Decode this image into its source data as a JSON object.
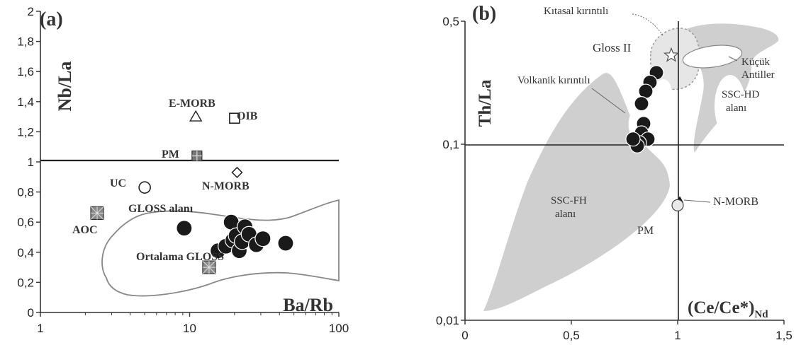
{
  "colors": {
    "region_fill": "#cfcfcf",
    "axis": "#333333",
    "sample": "#1a1a1a",
    "light_region": "#e6e6e6"
  },
  "chart_data": [
    {
      "panel": "(a)",
      "type": "scatter",
      "xlabel": "Ba/Rb",
      "ylabel": "Nb/La",
      "xscale": "log",
      "xlim": [
        1,
        100
      ],
      "ylim": [
        0,
        2
      ],
      "xticks": [
        "1",
        "10",
        "100"
      ],
      "yticks": [
        "0",
        "0,2",
        "0,4",
        "0,6",
        "0,8",
        "1",
        "1,2",
        "1,4",
        "1,6",
        "1,8",
        "2"
      ],
      "reference_line_y": 1,
      "region_label": "GLOSS alanı",
      "samples": [
        {
          "x": 9.2,
          "y": 0.56
        },
        {
          "x": 15.5,
          "y": 0.41
        },
        {
          "x": 17.5,
          "y": 0.44
        },
        {
          "x": 19,
          "y": 0.6
        },
        {
          "x": 19.5,
          "y": 0.48
        },
        {
          "x": 20.5,
          "y": 0.51
        },
        {
          "x": 21.5,
          "y": 0.41
        },
        {
          "x": 22.5,
          "y": 0.47
        },
        {
          "x": 23.5,
          "y": 0.57
        },
        {
          "x": 25,
          "y": 0.52
        },
        {
          "x": 28,
          "y": 0.45
        },
        {
          "x": 31,
          "y": 0.49
        },
        {
          "x": 44,
          "y": 0.46
        }
      ],
      "references": [
        {
          "label": "E-MORB",
          "symbol": "triangle",
          "x": 11,
          "y": 1.3
        },
        {
          "label": "OIB",
          "symbol": "square",
          "x": 20,
          "y": 1.29
        },
        {
          "label": "PM",
          "symbol": "crossed-square",
          "x": 11.2,
          "y": 1.04
        },
        {
          "label": "N-MORB",
          "symbol": "diamond",
          "x": 20.8,
          "y": 0.93
        },
        {
          "label": "UC",
          "symbol": "circle",
          "x": 5,
          "y": 0.83
        },
        {
          "label": "AOC",
          "symbol": "starred-square",
          "x": 2.4,
          "y": 0.66
        },
        {
          "label": "Ortalama GLOSS",
          "symbol": "starred-square",
          "x": 13.5,
          "y": 0.3
        }
      ]
    },
    {
      "panel": "(b)",
      "type": "scatter",
      "xlabel": "(Ce/Ce*)",
      "xlabel_sub": "Nd",
      "ylabel": "Th/La",
      "yscale": "log",
      "xlim": [
        0,
        1.5
      ],
      "ylim": [
        0.01,
        0.5
      ],
      "xticks": [
        "0",
        "0,5",
        "1",
        "1,5"
      ],
      "yticks": [
        "0,01",
        "0,1",
        "0,5"
      ],
      "reference_lines": {
        "x": 1,
        "y": 0.1
      },
      "regions": [
        {
          "name": "SSC-FH alanı",
          "label_lines": [
            "SSC-FH",
            "alanı"
          ]
        },
        {
          "name": "SSC-HD alanı",
          "label_lines": [
            "SSC-HD",
            "alanı"
          ]
        },
        {
          "name": "Küçük Antiller",
          "label_lines": [
            "Küçük",
            "Antiller"
          ]
        },
        {
          "name": "Kıtasal kırıntılı",
          "label_lines": [
            "Kıtasal kırıntılı"
          ]
        },
        {
          "name": "Gloss II",
          "label_lines": [
            "Gloss II"
          ]
        },
        {
          "name": "Volkanik kırıntılı",
          "label_lines": [
            "Volkanik kırıntılı"
          ]
        }
      ],
      "samples": [
        {
          "x": 0.9,
          "y": 0.255
        },
        {
          "x": 0.87,
          "y": 0.225
        },
        {
          "x": 0.85,
          "y": 0.2
        },
        {
          "x": 0.83,
          "y": 0.17
        },
        {
          "x": 0.84,
          "y": 0.131
        },
        {
          "x": 0.83,
          "y": 0.116
        },
        {
          "x": 0.86,
          "y": 0.107
        },
        {
          "x": 0.82,
          "y": 0.102
        },
        {
          "x": 0.81,
          "y": 0.098
        },
        {
          "x": 0.79,
          "y": 0.107
        }
      ],
      "references": [
        {
          "label": "N-MORB",
          "symbol": "filled-triangle",
          "x": 1.01,
          "y": 0.048
        },
        {
          "label": "PM",
          "symbol": "circle",
          "x": 1.0,
          "y": 0.045
        },
        {
          "label": "Gloss II",
          "symbol": "star",
          "x": 0.97,
          "y": 0.32
        }
      ]
    }
  ]
}
